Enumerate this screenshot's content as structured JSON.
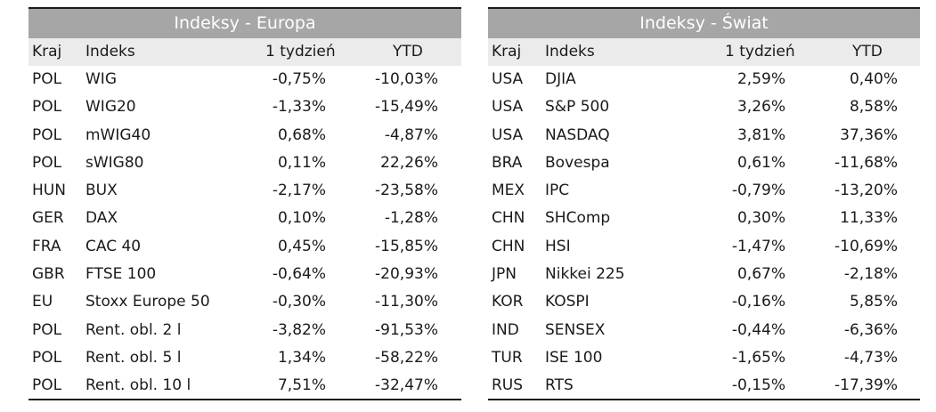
{
  "left": {
    "title": "Indeksy - Europa",
    "headers": {
      "kraj": "Kraj",
      "indeks": "Indeks",
      "week": "1 tydzień",
      "ytd": "YTD"
    },
    "rows": [
      {
        "kraj": "POL",
        "indeks": "WIG",
        "week": "-0,75%",
        "ytd": "-10,03%"
      },
      {
        "kraj": "POL",
        "indeks": "WIG20",
        "week": "-1,33%",
        "ytd": "-15,49%"
      },
      {
        "kraj": "POL",
        "indeks": "mWIG40",
        "week": "0,68%",
        "ytd": "-4,87%"
      },
      {
        "kraj": "POL",
        "indeks": "sWIG80",
        "week": "0,11%",
        "ytd": "22,26%"
      },
      {
        "kraj": "HUN",
        "indeks": "BUX",
        "week": "-2,17%",
        "ytd": "-23,58%"
      },
      {
        "kraj": "GER",
        "indeks": "DAX",
        "week": "0,10%",
        "ytd": "-1,28%"
      },
      {
        "kraj": "FRA",
        "indeks": "CAC 40",
        "week": "0,45%",
        "ytd": "-15,85%"
      },
      {
        "kraj": "GBR",
        "indeks": "FTSE 100",
        "week": "-0,64%",
        "ytd": "-20,93%"
      },
      {
        "kraj": "EU",
        "indeks": "Stoxx Europe 50",
        "week": "-0,30%",
        "ytd": "-11,30%"
      },
      {
        "kraj": "POL",
        "indeks": "Rent. obl. 2 l",
        "week": "-3,82%",
        "ytd": "-91,53%"
      },
      {
        "kraj": "POL",
        "indeks": "Rent. obl. 5 l",
        "week": "1,34%",
        "ytd": "-58,22%"
      },
      {
        "kraj": "POL",
        "indeks": "Rent. obl. 10 l",
        "week": "7,51%",
        "ytd": "-32,47%"
      }
    ]
  },
  "right": {
    "title": "Indeksy - Świat",
    "headers": {
      "kraj": "Kraj",
      "indeks": "Indeks",
      "week": "1 tydzień",
      "ytd": "YTD"
    },
    "rows": [
      {
        "kraj": "USA",
        "indeks": "DJIA",
        "week": "2,59%",
        "ytd": "0,40%"
      },
      {
        "kraj": "USA",
        "indeks": "S&P 500",
        "week": "3,26%",
        "ytd": "8,58%"
      },
      {
        "kraj": "USA",
        "indeks": "NASDAQ",
        "week": "3,81%",
        "ytd": "37,36%"
      },
      {
        "kraj": "BRA",
        "indeks": "Bovespa",
        "week": "0,61%",
        "ytd": "-11,68%"
      },
      {
        "kraj": "MEX",
        "indeks": "IPC",
        "week": "-0,79%",
        "ytd": "-13,20%"
      },
      {
        "kraj": "CHN",
        "indeks": "SHComp",
        "week": "0,30%",
        "ytd": "11,33%"
      },
      {
        "kraj": "CHN",
        "indeks": "HSI",
        "week": "-1,47%",
        "ytd": "-10,69%"
      },
      {
        "kraj": "JPN",
        "indeks": "Nikkei 225",
        "week": "0,67%",
        "ytd": "-2,18%"
      },
      {
        "kraj": "KOR",
        "indeks": "KOSPI",
        "week": "-0,16%",
        "ytd": "5,85%"
      },
      {
        "kraj": "IND",
        "indeks": "SENSEX",
        "week": "-0,44%",
        "ytd": "-6,36%"
      },
      {
        "kraj": "TUR",
        "indeks": "ISE 100",
        "week": "-1,65%",
        "ytd": "-4,73%"
      },
      {
        "kraj": "RUS",
        "indeks": "RTS",
        "week": "-0,15%",
        "ytd": "-17,39%"
      }
    ]
  }
}
